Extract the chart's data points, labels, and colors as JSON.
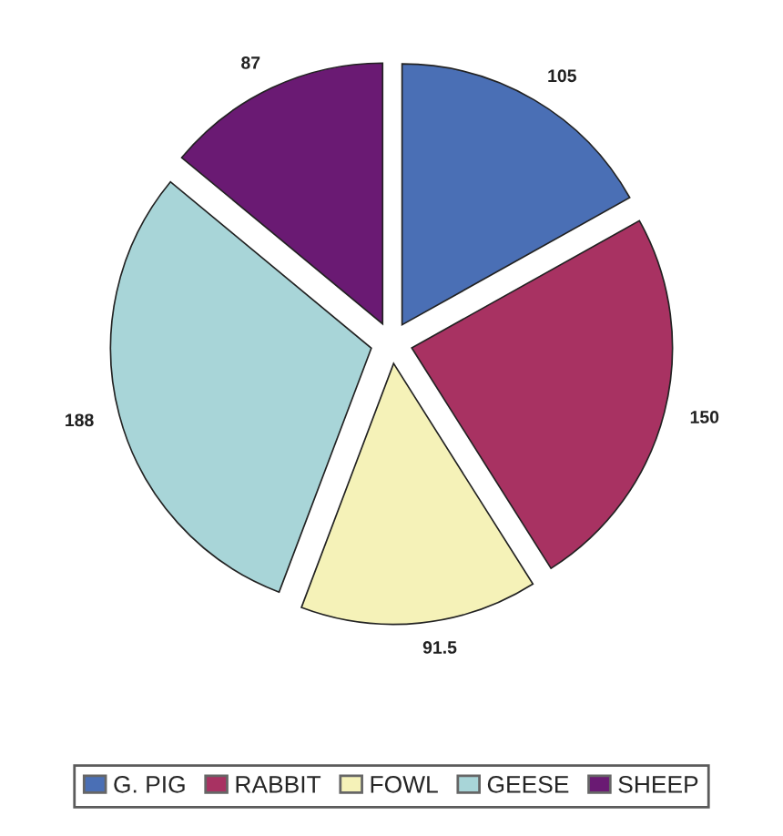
{
  "chart_data": {
    "type": "pie",
    "categories": [
      "G. PIG",
      "RABBIT",
      "FOWL",
      "GEESE",
      "SHEEP"
    ],
    "values": [
      105,
      150,
      91.5,
      188,
      87
    ],
    "colors": [
      "#4a6fb5",
      "#a83262",
      "#f5f2b8",
      "#a8d5d8",
      "#6a1a73"
    ],
    "data_labels": true,
    "legend": "bottom"
  }
}
